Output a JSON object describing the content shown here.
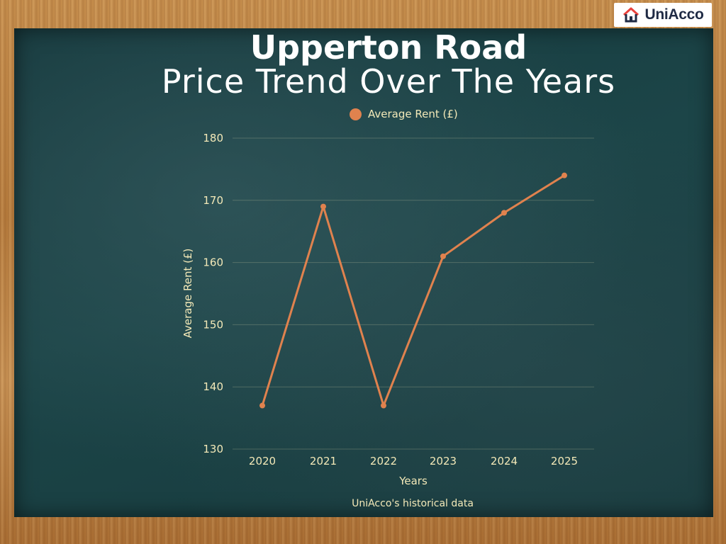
{
  "branding": {
    "logo_text": "UniAcco",
    "logo_icon": "house-icon"
  },
  "header": {
    "title": "Upperton Road",
    "subtitle": "Price Trend Over The Years"
  },
  "footer": {
    "source": "UniAcco's historical data"
  },
  "colors": {
    "line": "#e0824e",
    "text": "#f3e9b8",
    "board": "#1c4548"
  },
  "chart_data": {
    "type": "line",
    "title": "Upperton Road Price Trend Over The Years",
    "xlabel": "Years",
    "ylabel": "Average Rent (£)",
    "categories": [
      "2020",
      "2021",
      "2022",
      "2023",
      "2024",
      "2025"
    ],
    "series": [
      {
        "name": "Average Rent (£)",
        "values": [
          137,
          169,
          137,
          161,
          168,
          174
        ]
      }
    ],
    "ylim": [
      130,
      180
    ],
    "yticks": [
      130,
      140,
      150,
      160,
      170,
      180
    ],
    "grid": true,
    "legend": "top-center"
  }
}
